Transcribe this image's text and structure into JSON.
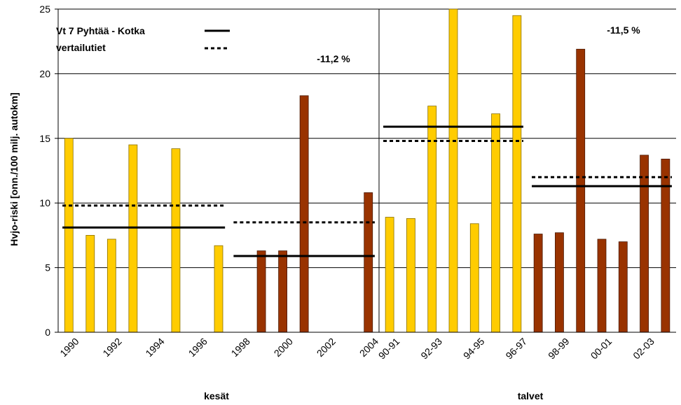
{
  "chart_data": {
    "type": "bar",
    "ylabel": "Hvjo-riski [onn./100 milj. autokm]",
    "ylim": [
      0,
      25
    ],
    "yticks": [
      0,
      5,
      10,
      15,
      20,
      25
    ],
    "grid": true,
    "colors": {
      "before": "#FFCC00",
      "after": "#993300",
      "before_edge": "#8a7000",
      "after_edge": "#4a1800",
      "grid": "#000000"
    },
    "groups": [
      {
        "label": "kesät",
        "categories": [
          "1990",
          "1991",
          "1992",
          "1993",
          "1994",
          "1995",
          "1996",
          "1997",
          "1998",
          "1999",
          "2000",
          "2001",
          "2002",
          "2003",
          "2004"
        ],
        "tick_labels": [
          "1990",
          "1992",
          "1994",
          "1996",
          "1998",
          "2000",
          "2002",
          "2004"
        ],
        "values": [
          15.0,
          7.5,
          7.2,
          14.5,
          null,
          14.2,
          null,
          6.7,
          null,
          6.3,
          6.3,
          18.3,
          null,
          null,
          10.8
        ],
        "bar_colors": [
          "before",
          "before",
          "before",
          "before",
          "before",
          "before",
          "before",
          "before",
          "after",
          "after",
          "after",
          "after",
          "after",
          "after",
          "after"
        ],
        "change_label": "-11,2 %",
        "lines": {
          "main_before": 8.1,
          "main_after": 5.9,
          "ref_before": 9.8,
          "ref_after": 8.5
        }
      },
      {
        "label": "talvet",
        "categories": [
          "90-91",
          "91-92",
          "92-93",
          "93-94",
          "94-95",
          "95-96",
          "96-97",
          "97-98",
          "98-99",
          "99-00",
          "00-01",
          "01-02",
          "02-03",
          "03-04"
        ],
        "tick_labels": [
          "90-91",
          "92-93",
          "94-95",
          "96-97",
          "98-99",
          "00-01",
          "02-03"
        ],
        "values": [
          8.9,
          8.8,
          17.5,
          25.5,
          8.4,
          16.9,
          24.5,
          7.6,
          7.7,
          21.9,
          7.2,
          7.0,
          13.7,
          13.4
        ],
        "bar_colors": [
          "before",
          "before",
          "before",
          "before",
          "before",
          "before",
          "before",
          "after",
          "after",
          "after",
          "after",
          "after",
          "after",
          "after"
        ],
        "change_label": "-11,5 %",
        "lines": {
          "main_before": 15.9,
          "main_after": 11.3,
          "ref_before": 14.8,
          "ref_after": 12.0
        }
      }
    ],
    "legend": {
      "position": "top-left",
      "items": [
        {
          "label": "Vt 7 Pyhtää - Kotka",
          "style": "solid"
        },
        {
          "label": "vertailutiet",
          "style": "dashed"
        }
      ]
    }
  }
}
